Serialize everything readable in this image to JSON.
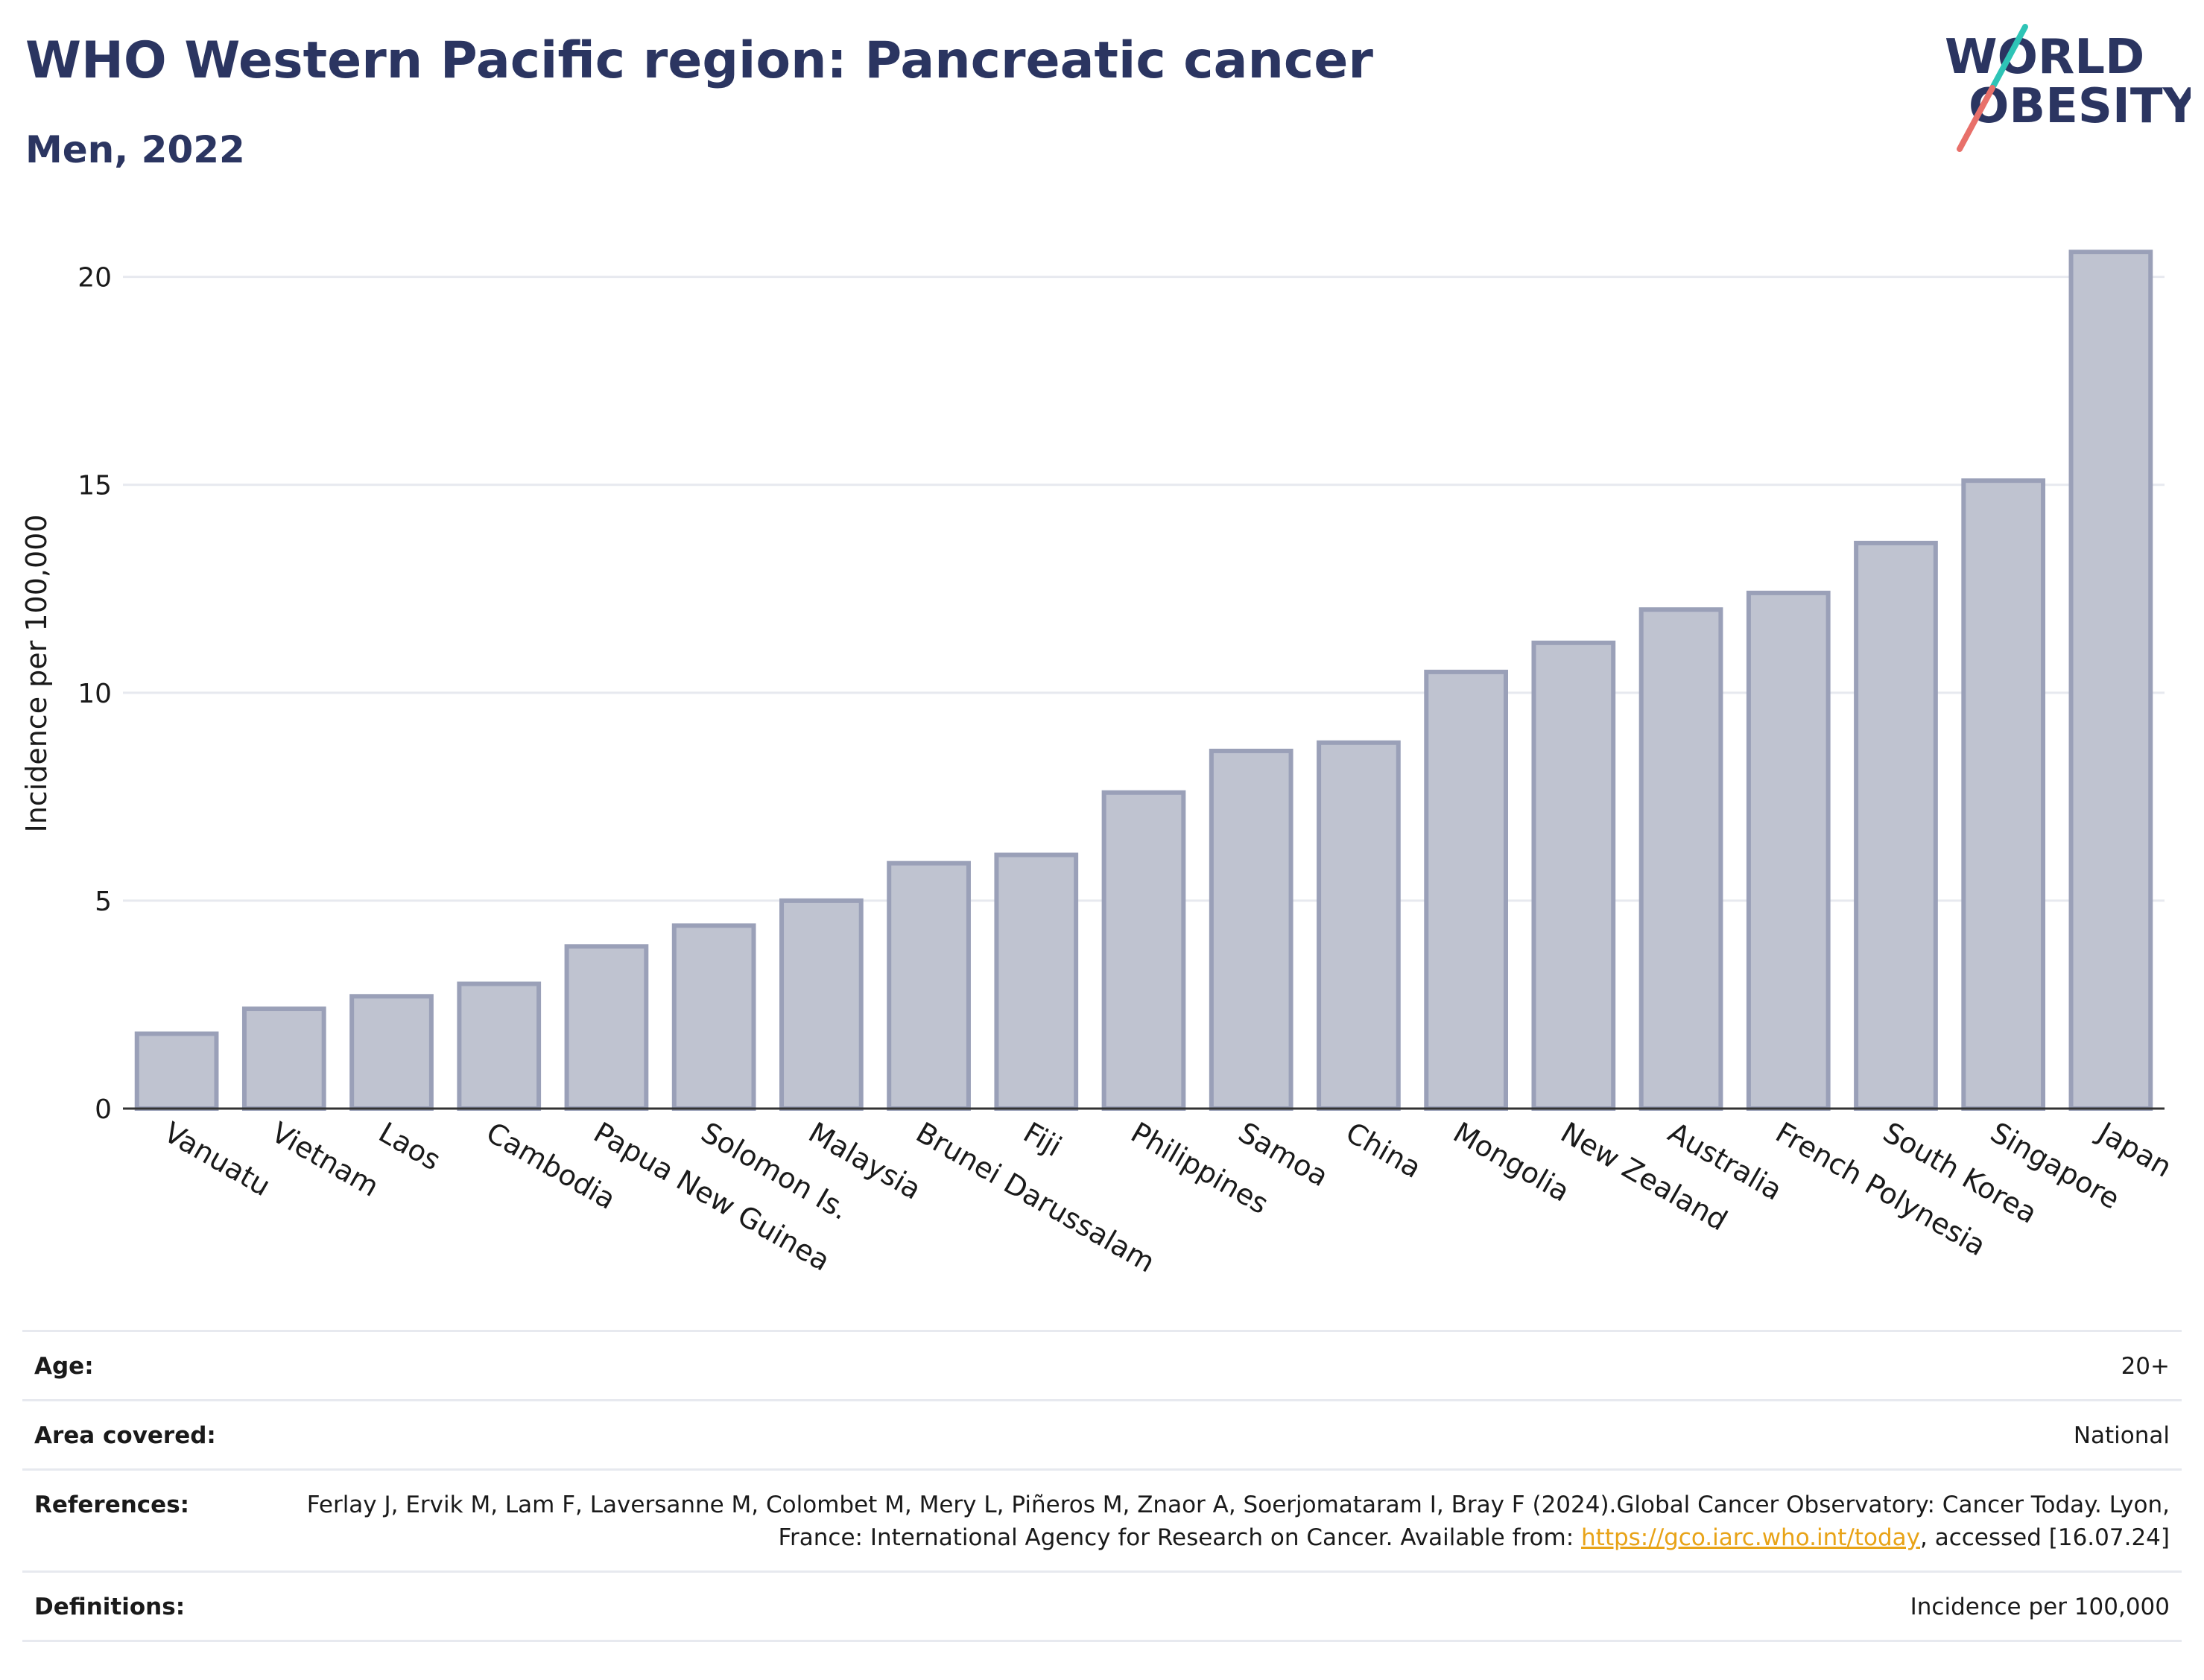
{
  "header": {
    "title": "WHO Western Pacific region: Pancreatic cancer",
    "subtitle": "Men, 2022"
  },
  "logo": {
    "line1": "WORLD",
    "line2": "OBESITY",
    "accent_teal": "#2ec4b6",
    "accent_coral": "#e8706a",
    "text_color": "#2b3561"
  },
  "colors": {
    "bar_fill": "#bfc3d0",
    "bar_stroke": "#9aa0b8",
    "grid": "#e7e9ef",
    "title": "#2b3561",
    "link": "#e8a317"
  },
  "chart_data": {
    "type": "bar",
    "title": "WHO Western Pacific region: Pancreatic cancer",
    "subtitle": "Men, 2022",
    "xlabel": "",
    "ylabel": "Incidence per 100,000",
    "ylim": [
      0,
      22
    ],
    "yticks": [
      0,
      5,
      10,
      15,
      20
    ],
    "grid": true,
    "categories": [
      "Vanuatu",
      "Vietnam",
      "Laos",
      "Cambodia",
      "Papua New Guinea",
      "Solomon Is.",
      "Malaysia",
      "Brunei Darussalam",
      "Fiji",
      "Philippines",
      "Samoa",
      "China",
      "Mongolia",
      "New Zealand",
      "Australia",
      "French Polynesia",
      "South Korea",
      "Singapore",
      "Japan"
    ],
    "values": [
      1.8,
      2.4,
      2.7,
      3.0,
      3.9,
      4.4,
      5.0,
      5.9,
      6.1,
      7.6,
      8.6,
      8.8,
      10.5,
      11.2,
      12.0,
      12.4,
      13.6,
      15.1,
      20.6
    ]
  },
  "meta": {
    "age_label": "Age:",
    "age_value": "20+",
    "area_label": "Area covered:",
    "area_value": "National",
    "references_label": "References:",
    "references_text": "Ferlay J, Ervik M, Lam F, Laversanne M, Colombet M, Mery L, Piñeros M, Znaor A, Soerjomataram I, Bray F (2024).Global Cancer Observatory: Cancer Today. Lyon, France: International Agency for Research on Cancer. Available from:",
    "references_link": "https://gco.iarc.who.int/today",
    "references_tail": ", accessed [16.07.24]",
    "definitions_label": "Definitions:",
    "definitions_value": "Incidence per 100,000"
  }
}
